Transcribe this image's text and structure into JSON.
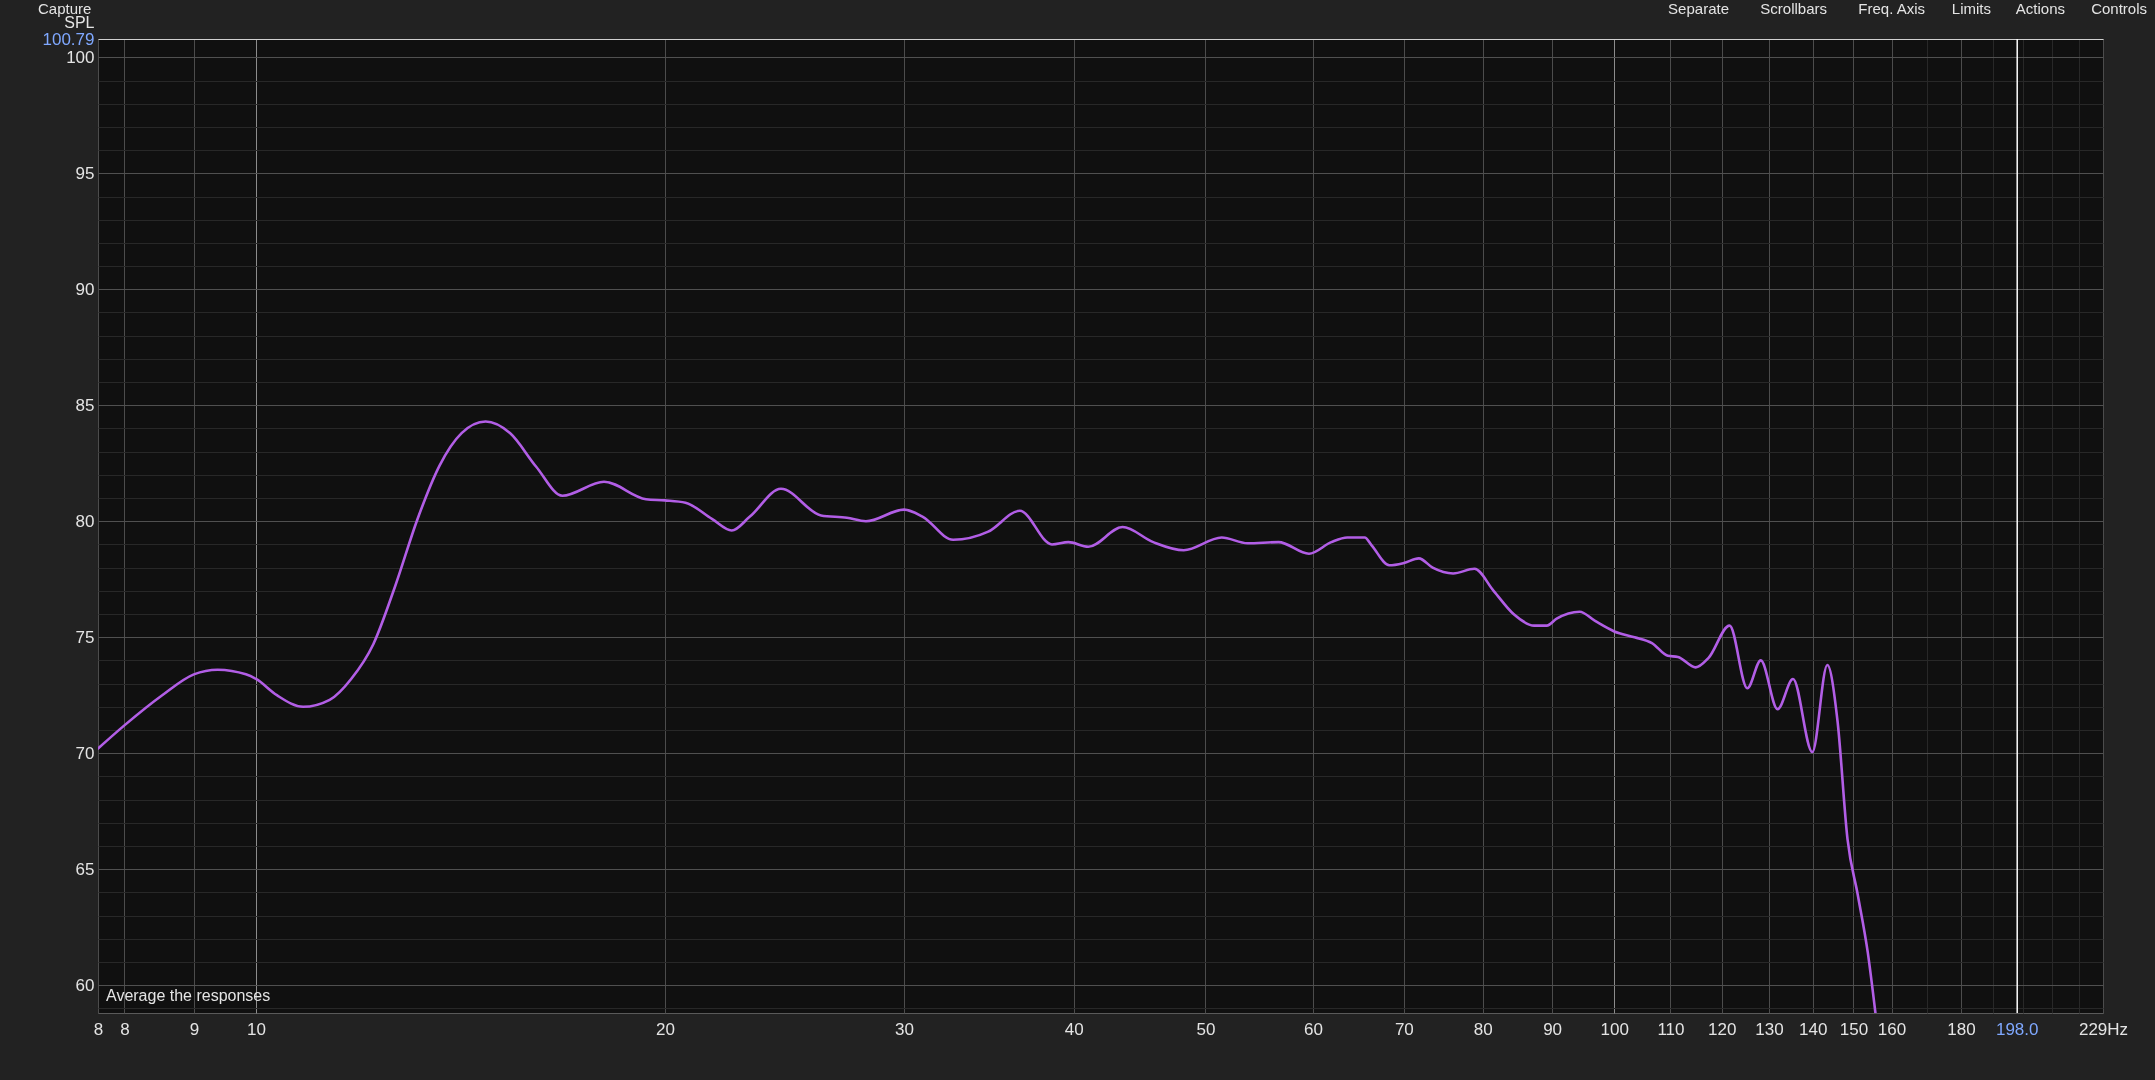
{
  "chart_data": {
    "type": "line",
    "ylabel": "SPL",
    "annotations": [
      "Average the responses",
      "Capture",
      "Separate",
      "Scrollbars",
      "Freq. Axis",
      "Limits",
      "Actions",
      "Controls"
    ],
    "x": [
      7.65,
      8.0,
      8.53,
      9.0,
      9.37,
      9.83,
      10.0,
      10.36,
      10.83,
      11.33,
      11.75,
      12.2,
      12.66,
      13.15,
      13.65,
      14.17,
      14.76,
      15.38,
      16.08,
      16.81,
      18.04,
      19.37,
      20.0,
      20.71,
      21.66,
      22.4,
      23.1,
      24.35,
      26.06,
      27.23,
      28.12,
      30.0,
      30.95,
      32.6,
      34.6,
      36.5,
      38.55,
      39.64,
      41.0,
      43.45,
      45.77,
      48.2,
      51.4,
      53.7,
      56.6,
      59.6,
      61.9,
      63.6,
      65.5,
      66.3,
      68.3,
      70.0,
      71.8,
      73.5,
      76.1,
      78.9,
      81.5,
      84.3,
      87.3,
      89.2,
      90.7,
      94.3,
      96.8,
      100,
      103.5,
      106.6,
      109.5,
      111.4,
      114.8,
      117.3,
      121.6,
      125.3,
      128.2,
      131.9,
      135.4,
      139.9,
      143.5,
      146.0,
      148.5,
      151.1,
      153.7,
      155.7
    ],
    "series": [
      {
        "color": "#b25ee6",
        "values": [
          70.2,
          71.2,
          72.5,
          73.4,
          73.6,
          73.4,
          73.2,
          72.5,
          72.0,
          72.3,
          73.2,
          74.7,
          77.2,
          80.1,
          82.4,
          83.8,
          84.3,
          83.8,
          82.35,
          81.1,
          81.7,
          80.95,
          80.9,
          80.8,
          80.1,
          79.6,
          80.2,
          81.4,
          80.25,
          80.15,
          80.0,
          80.5,
          80.2,
          79.2,
          79.55,
          80.45,
          79.0,
          79.1,
          78.9,
          79.75,
          79.1,
          78.75,
          79.3,
          79.05,
          79.1,
          78.6,
          79.1,
          79.3,
          79.3,
          78.95,
          78.1,
          78.2,
          78.4,
          78.0,
          77.75,
          77.95,
          77.0,
          76.0,
          75.5,
          75.5,
          75.8,
          76.1,
          75.7,
          75.25,
          75.0,
          74.75,
          74.2,
          74.15,
          73.7,
          74.1,
          75.5,
          72.8,
          74.0,
          71.9,
          73.2,
          70.05,
          73.8,
          71.4,
          66.3,
          63.9,
          61.4,
          58.8
        ]
      }
    ],
    "xlim": [
      7.65,
      229
    ],
    "ylim": [
      58.8,
      100.79
    ],
    "xticks": [
      {
        "value": 7.65,
        "label": "8"
      },
      8,
      9,
      10,
      20,
      30,
      40,
      50,
      60,
      70,
      80,
      90,
      100,
      110,
      120,
      130,
      140,
      150,
      160,
      {
        "value": 170,
        "label": null
      },
      180,
      {
        "value": 190,
        "label": null
      },
      {
        "value": 200,
        "label": null
      },
      {
        "value": 210,
        "label": null
      },
      {
        "value": 220,
        "label": null
      },
      {
        "value": 229,
        "label": "229Hz"
      }
    ],
    "yticks": [
      {
        "value": 59,
        "label": null
      },
      60,
      {
        "value": 61,
        "label": null
      },
      {
        "value": 62,
        "label": null
      },
      {
        "value": 63,
        "label": null
      },
      {
        "value": 64,
        "label": null
      },
      65,
      {
        "value": 66,
        "label": null
      },
      {
        "value": 67,
        "label": null
      },
      {
        "value": 68,
        "label": null
      },
      {
        "value": 69,
        "label": null
      },
      70,
      {
        "value": 71,
        "label": null
      },
      {
        "value": 72,
        "label": null
      },
      {
        "value": 73,
        "label": null
      },
      {
        "value": 74,
        "label": null
      },
      75,
      {
        "value": 76,
        "label": null
      },
      {
        "value": 77,
        "label": null
      },
      {
        "value": 78,
        "label": null
      },
      {
        "value": 79,
        "label": null
      },
      80,
      {
        "value": 81,
        "label": null
      },
      {
        "value": 82,
        "label": null
      },
      {
        "value": 83,
        "label": null
      },
      {
        "value": 84,
        "label": null
      },
      85,
      {
        "value": 86,
        "label": null
      },
      {
        "value": 87,
        "label": null
      },
      {
        "value": 88,
        "label": null
      },
      {
        "value": 89,
        "label": null
      },
      90,
      {
        "value": 91,
        "label": null
      },
      {
        "value": 92,
        "label": null
      },
      {
        "value": 93,
        "label": null
      },
      {
        "value": 94,
        "label": null
      },
      95,
      {
        "value": 96,
        "label": null
      },
      {
        "value": 97,
        "label": null
      },
      {
        "value": 98,
        "label": null
      },
      {
        "value": 99,
        "label": null
      },
      100,
      100.79
    ],
    "log": "x",
    "grid": true,
    "line_style": "solid",
    "ref_lines": [
      {
        "axis": "x",
        "value": 198,
        "label": "198.0",
        "color": "#ffffff"
      }
    ]
  }
}
